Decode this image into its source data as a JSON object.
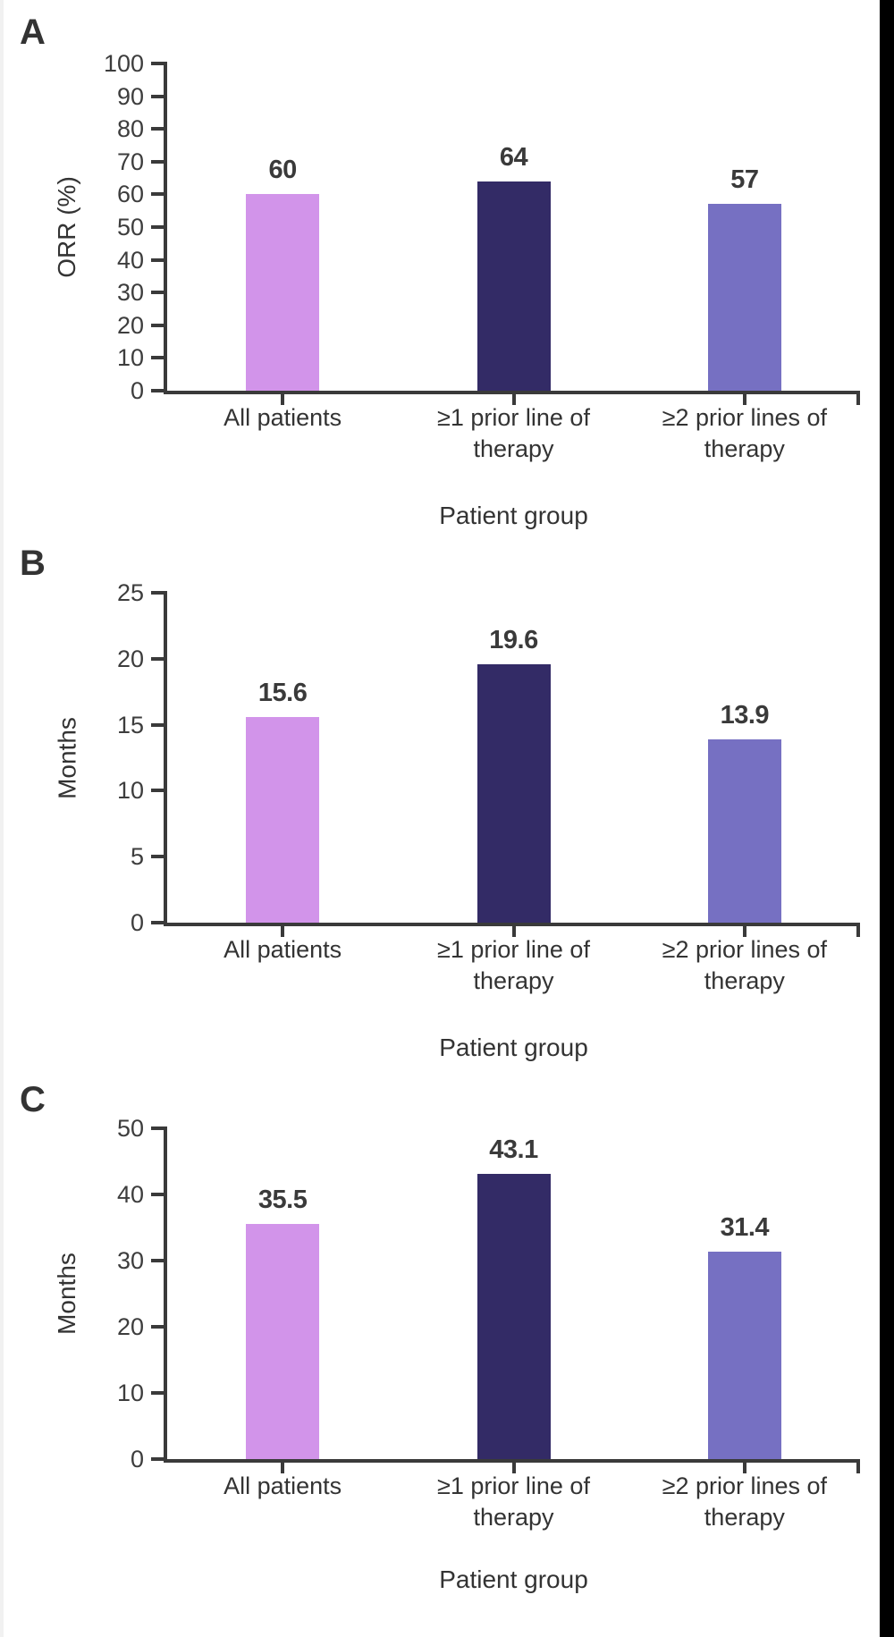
{
  "figure_description": "Three-panel vertical bar figure (panels A, B, C) comparing patient groups",
  "style": {
    "bar_colors": [
      "#d294ea",
      "#332b66",
      "#7670c2"
    ],
    "axis_color": "#3a3a3a",
    "text_color": "#333333",
    "value_label_color": "#3a3a3a",
    "background": "#ffffff",
    "right_edge_band_color": "#000000"
  },
  "chart_data": [
    {
      "type": "bar",
      "panel": "A",
      "categories": [
        "All patients",
        "≥1 prior line of therapy",
        "≥2 prior lines of therapy"
      ],
      "categories_multiline": [
        [
          "All patients"
        ],
        [
          "≥1 prior line of",
          "therapy"
        ],
        [
          "≥2 prior lines of",
          "therapy"
        ]
      ],
      "values": [
        60,
        64,
        57
      ],
      "bar_labels": [
        "60",
        "64",
        "57"
      ],
      "xlabel": "Patient group",
      "ylabel": "ORR (%)",
      "ylim": [
        0,
        100
      ],
      "ytick_step": 10,
      "yticks": [
        0,
        10,
        20,
        30,
        40,
        50,
        60,
        70,
        80,
        90,
        100
      ],
      "grid": false,
      "legend": "none",
      "bar_colors": [
        "#d294ea",
        "#332b66",
        "#7670c2"
      ]
    },
    {
      "type": "bar",
      "panel": "B",
      "categories": [
        "All patients",
        "≥1 prior line of therapy",
        "≥2 prior lines of therapy"
      ],
      "categories_multiline": [
        [
          "All patients"
        ],
        [
          "≥1 prior line of",
          "therapy"
        ],
        [
          "≥2 prior lines of",
          "therapy"
        ]
      ],
      "values": [
        15.6,
        19.6,
        13.9
      ],
      "bar_labels": [
        "15.6",
        "19.6",
        "13.9"
      ],
      "xlabel": "Patient group",
      "ylabel": "Months",
      "ylim": [
        0,
        25
      ],
      "ytick_step": 5,
      "yticks": [
        0,
        5,
        10,
        15,
        20,
        25
      ],
      "grid": false,
      "legend": "none",
      "bar_colors": [
        "#d294ea",
        "#332b66",
        "#7670c2"
      ]
    },
    {
      "type": "bar",
      "panel": "C",
      "categories": [
        "All patients",
        "≥1 prior line of therapy",
        "≥2 prior lines of therapy"
      ],
      "categories_multiline": [
        [
          "All patients"
        ],
        [
          "≥1 prior line of",
          "therapy"
        ],
        [
          "≥2 prior lines of",
          "therapy"
        ]
      ],
      "values": [
        35.5,
        43.1,
        31.4
      ],
      "bar_labels": [
        "35.5",
        "43.1",
        "31.4"
      ],
      "xlabel": "Patient group",
      "ylabel": "Months",
      "ylim": [
        0,
        50
      ],
      "ytick_step": 10,
      "yticks": [
        0,
        10,
        20,
        30,
        40,
        50
      ],
      "grid": false,
      "legend": "none",
      "bar_colors": [
        "#d294ea",
        "#332b66",
        "#7670c2"
      ]
    }
  ]
}
